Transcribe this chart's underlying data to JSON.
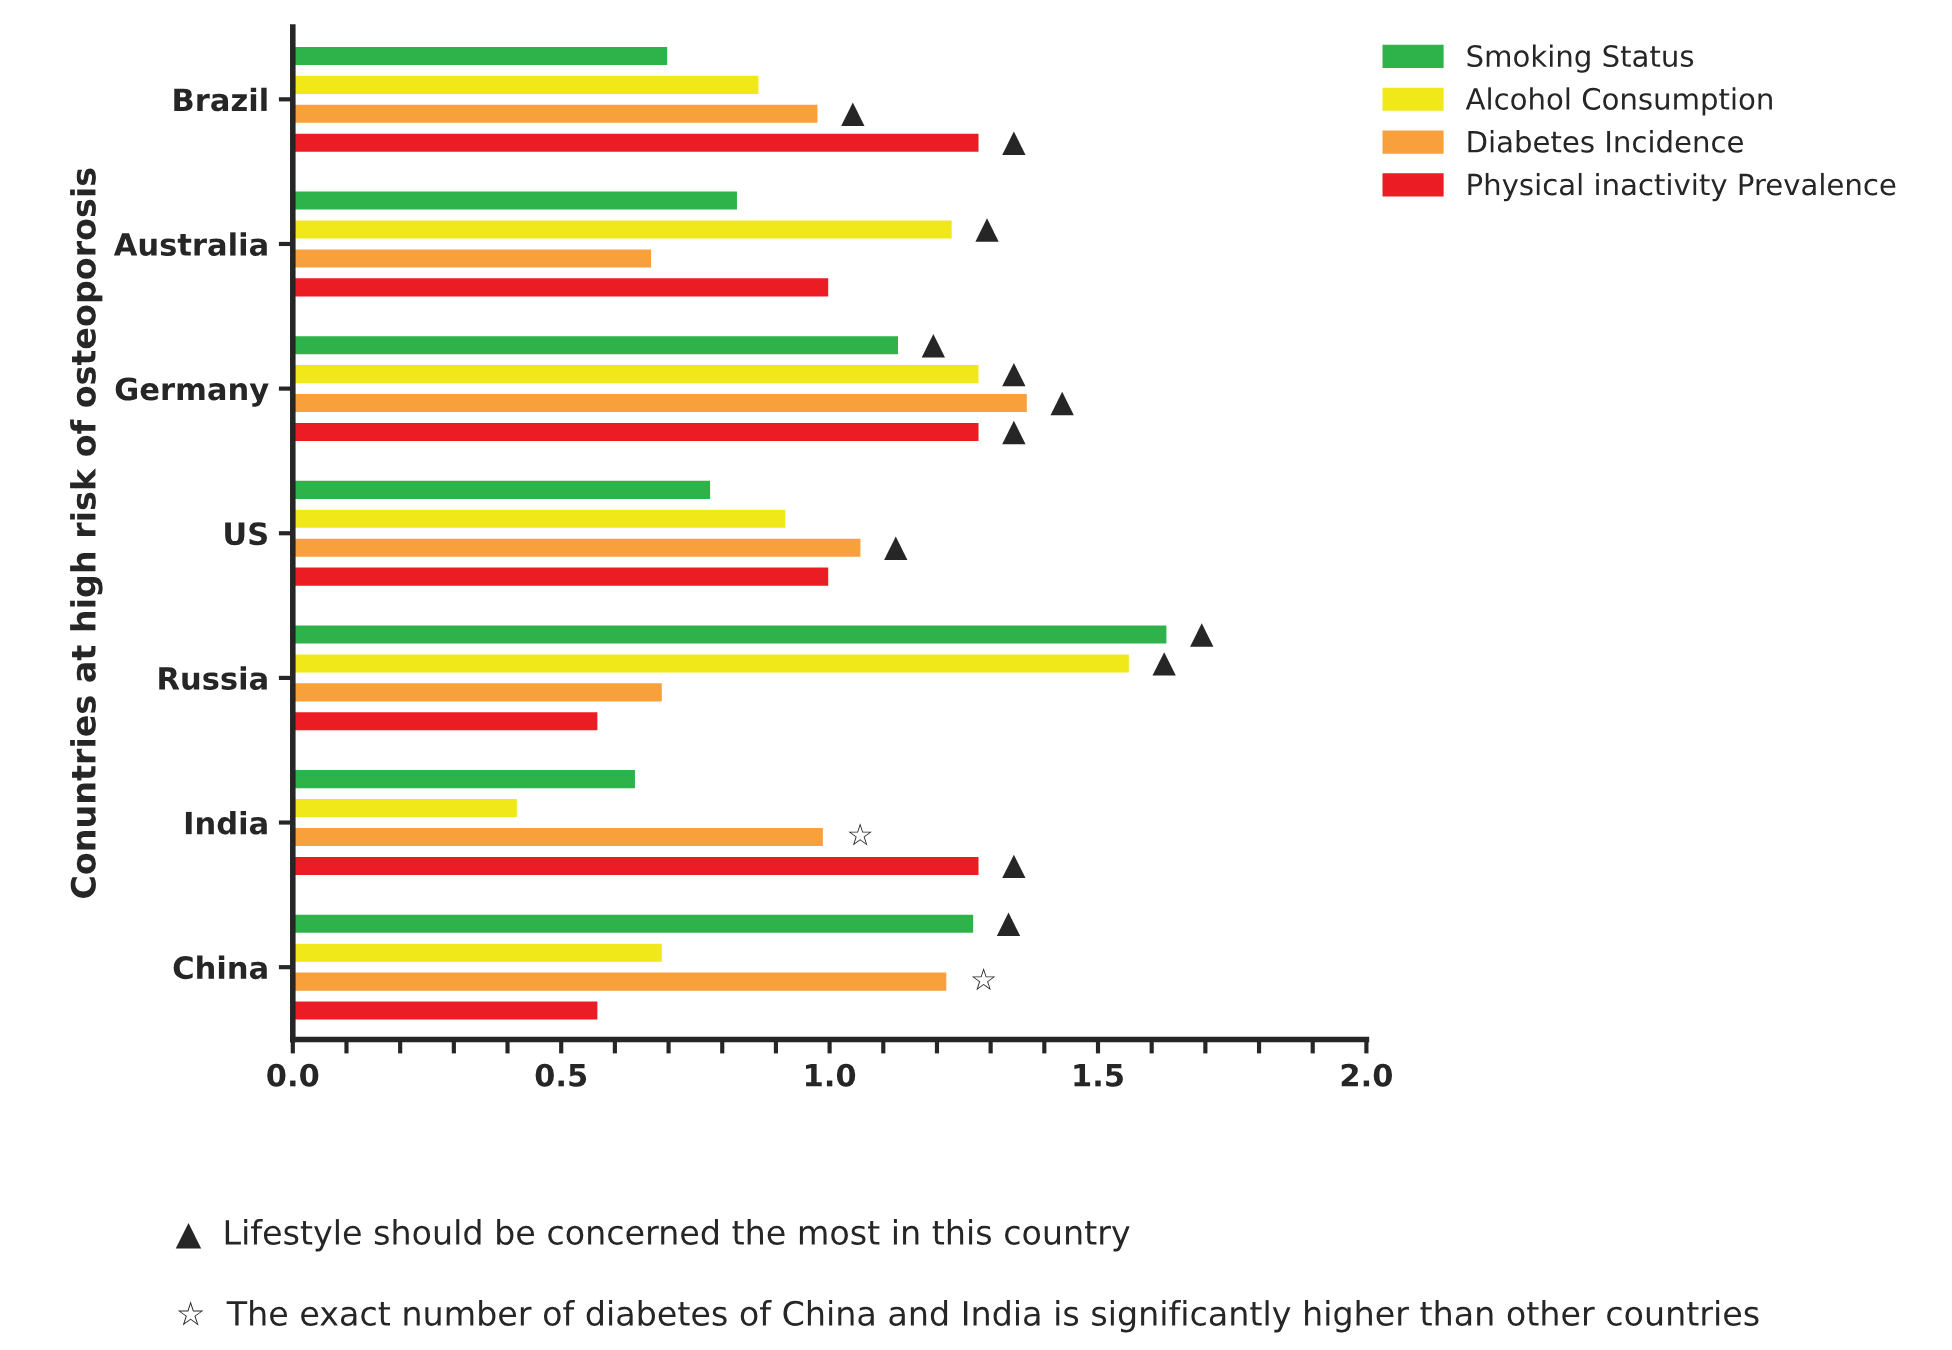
{
  "chart_data": {
    "type": "bar",
    "orientation": "horizontal",
    "ylabel": "Conuntries at high risk of osteoporosis",
    "categories": [
      "Brazil",
      "Australia",
      "Germany",
      "US",
      "Russia",
      "India",
      "China"
    ],
    "series": [
      {
        "name": "Smoking Status",
        "color": "#2db34a",
        "values": [
          0.7,
          0.83,
          1.13,
          0.78,
          1.63,
          0.64,
          1.27
        ],
        "value_labels": [
          null,
          null,
          "▲",
          null,
          "▲",
          null,
          "▲"
        ]
      },
      {
        "name": "Alcohol Consumption",
        "color": "#f0e818",
        "values": [
          0.87,
          1.23,
          1.28,
          0.92,
          1.56,
          0.42,
          0.69
        ],
        "value_labels": [
          null,
          "▲",
          "▲",
          null,
          "▲",
          null,
          null
        ]
      },
      {
        "name": "Diabetes Incidence",
        "color": "#f7a03c",
        "values": [
          0.98,
          0.67,
          1.37,
          1.06,
          0.69,
          0.99,
          1.22
        ],
        "value_labels": [
          "▲",
          null,
          "▲",
          "▲",
          null,
          "☆",
          "☆"
        ]
      },
      {
        "name": "Physical inactivity Prevalence",
        "color": "#ec1c24",
        "values": [
          1.28,
          1.0,
          1.28,
          1.0,
          0.57,
          1.28,
          0.57
        ],
        "value_labels": [
          "▲",
          null,
          "▲",
          null,
          null,
          "▲",
          null
        ]
      }
    ],
    "xlim": [
      0,
      2.0
    ],
    "xticks": [
      {
        "value": 0,
        "label": "0.0"
      },
      {
        "value": 0.1,
        "label": null
      },
      {
        "value": 0.2,
        "label": null
      },
      {
        "value": 0.3,
        "label": null
      },
      {
        "value": 0.4,
        "label": null
      },
      {
        "value": 0.5,
        "label": "0.5"
      },
      {
        "value": 0.6,
        "label": null
      },
      {
        "value": 0.7,
        "label": null
      },
      {
        "value": 0.8,
        "label": null
      },
      {
        "value": 0.9,
        "label": null
      },
      {
        "value": 1.0,
        "label": "1.0"
      },
      {
        "value": 1.1,
        "label": null
      },
      {
        "value": 1.2,
        "label": null
      },
      {
        "value": 1.3,
        "label": null
      },
      {
        "value": 1.4,
        "label": null
      },
      {
        "value": 1.5,
        "label": "1.5"
      },
      {
        "value": 1.6,
        "label": null
      },
      {
        "value": 1.7,
        "label": null
      },
      {
        "value": 1.8,
        "label": null
      },
      {
        "value": 1.9,
        "label": null
      },
      {
        "value": 2.0,
        "label": "2.0"
      }
    ],
    "grid": false,
    "legend": "top right",
    "annotations": [
      "▲  Lifestyle should be concerned the most in this country",
      "☆  The exact number of diabetes of China and India is significantly higher than other countries"
    ]
  }
}
